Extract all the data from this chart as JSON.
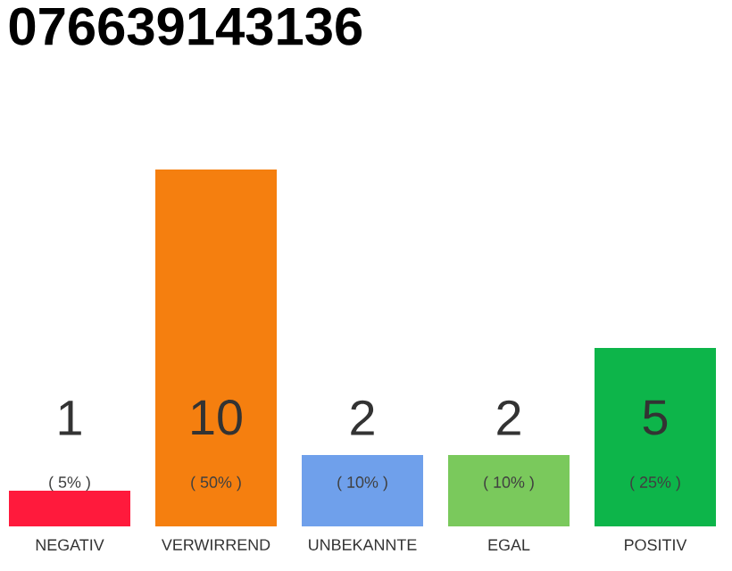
{
  "chart_data": {
    "type": "bar",
    "title": "076639143136",
    "categories": [
      "NEGATIV",
      "VERWIRREND",
      "UNBEKANNTE",
      "EGAL",
      "POSITIV"
    ],
    "values": [
      1,
      10,
      2,
      2,
      5
    ],
    "colors": [
      "#ff1a3c",
      "#f57f0f",
      "#6fa0eb",
      "#7ac95c",
      "#0db54a"
    ],
    "data_labels": true,
    "annotations": [
      "( 5% )",
      "( 50% )",
      "( 10% )",
      "( 10% )",
      "( 25% )"
    ]
  }
}
